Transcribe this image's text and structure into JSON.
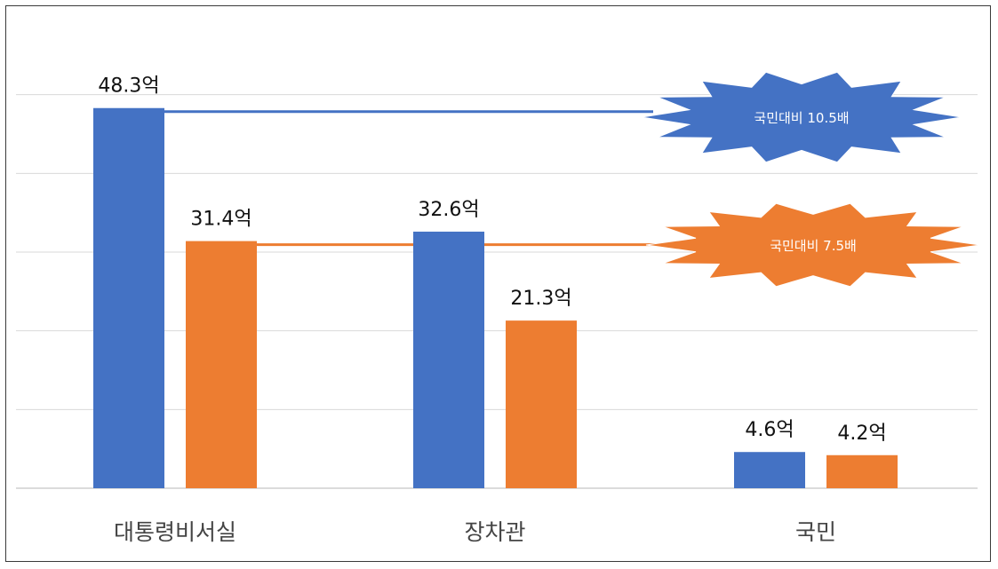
{
  "chart_data": {
    "type": "bar",
    "categories": [
      "대통령비서실",
      "장차관",
      "국민"
    ],
    "series": [
      {
        "values": [
          48.3,
          32.6,
          4.6
        ],
        "labels": [
          "48.3억",
          "32.6억",
          "4.6억"
        ],
        "color": "#4472C4"
      },
      {
        "values": [
          31.4,
          21.3,
          4.2
        ],
        "labels": [
          "31.4억",
          "21.3억",
          "4.2억"
        ],
        "color": "#ED7D31"
      }
    ],
    "ylim": [
      0,
      60
    ],
    "grid": true,
    "reference_lines": [
      {
        "value": 48.3,
        "color": "#4472C4",
        "callout": "국민대비 10.5배"
      },
      {
        "value": 31.4,
        "color": "#ED7D31",
        "callout": "국민대비 7.5배"
      }
    ]
  }
}
